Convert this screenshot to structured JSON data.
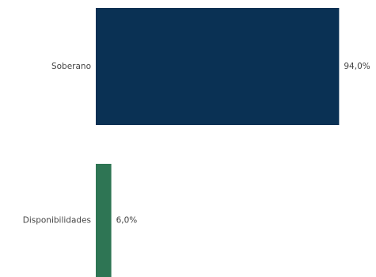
{
  "chart_data": {
    "type": "bar",
    "orientation": "horizontal",
    "categories": [
      "Soberano",
      "Disponibilidades"
    ],
    "values": [
      94.0,
      6.0
    ],
    "value_labels": [
      "94,0%",
      "6,0%"
    ],
    "colors": [
      "#0a3154",
      "#2e7554"
    ],
    "title": "",
    "xlabel": "",
    "ylabel": "",
    "xlim": [
      0,
      100
    ],
    "grid": false,
    "legend": "none"
  }
}
